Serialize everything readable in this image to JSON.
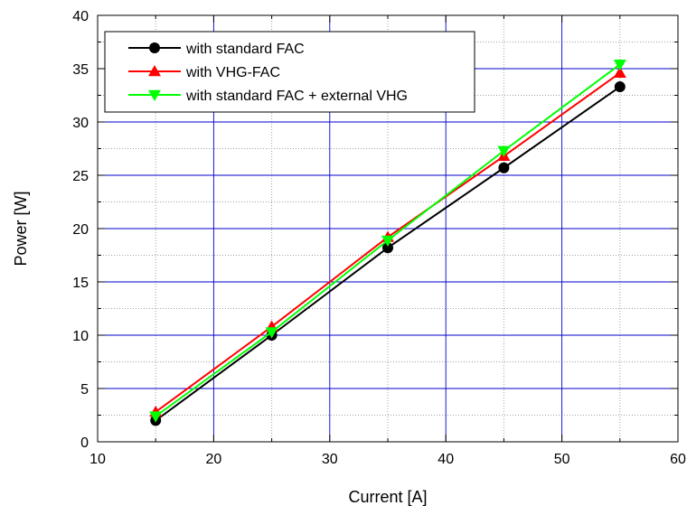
{
  "chart_data": {
    "type": "line",
    "title": "",
    "xlabel": "Current [A]",
    "ylabel": "Power [W]",
    "xlim": [
      10,
      60
    ],
    "ylim": [
      0,
      40
    ],
    "x_ticks": [
      10,
      20,
      30,
      40,
      50,
      60
    ],
    "y_ticks": [
      0,
      5,
      10,
      15,
      20,
      25,
      30,
      35,
      40
    ],
    "grid": true,
    "legend_position": "top-left",
    "series": [
      {
        "name": "with standard FAC",
        "color": "#000000",
        "marker": "circle",
        "x": [
          15,
          25,
          35,
          45,
          55
        ],
        "y": [
          2.0,
          10.0,
          18.2,
          25.7,
          33.3
        ]
      },
      {
        "name": "with VHG-FAC",
        "color": "#ff0000",
        "marker": "triangle-up",
        "x": [
          15,
          25,
          35,
          45,
          55
        ],
        "y": [
          2.8,
          10.8,
          19.2,
          26.8,
          34.6
        ]
      },
      {
        "name": "with standard FAC + external VHG",
        "color": "#00ff00",
        "marker": "triangle-down",
        "x": [
          15,
          25,
          35,
          45,
          55
        ],
        "y": [
          2.4,
          10.3,
          18.9,
          27.3,
          35.4
        ]
      }
    ]
  }
}
